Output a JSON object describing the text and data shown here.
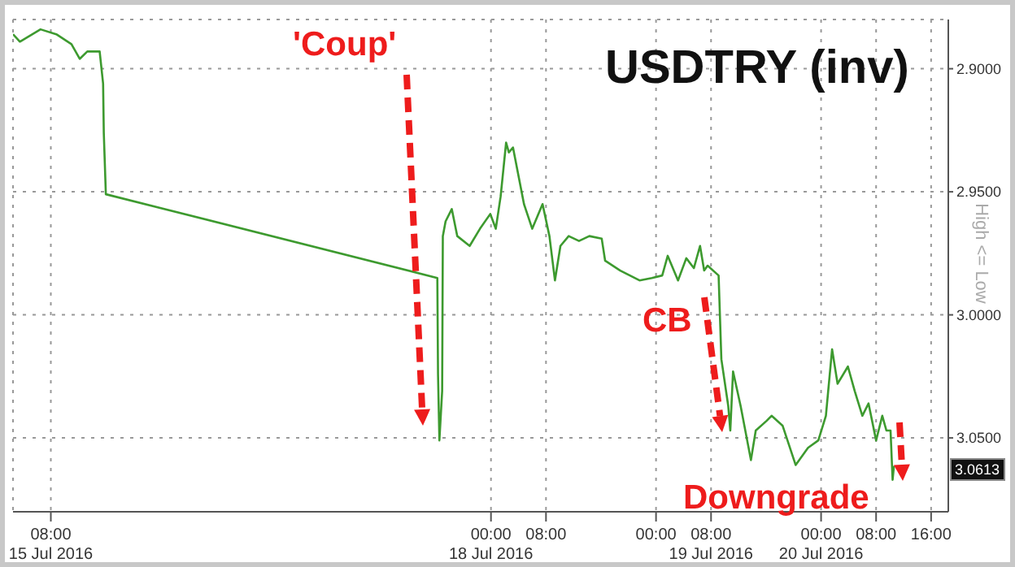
{
  "chart_data": {
    "type": "line",
    "title": "USDTRY (inv)",
    "ylabel": "High <= Low",
    "annotations": [
      "'Coup'",
      "CB",
      "Downgrade",
      "3.0613"
    ],
    "x": [
      "2016-07-15T02:30",
      "2016-07-15T03:30",
      "2016-07-15T06:30",
      "2016-07-15T08:48",
      "2016-07-15T11:00",
      "2016-07-15T12:12",
      "2016-07-15T13:18",
      "2016-07-15T15:06",
      "2016-07-15T15:36",
      "2016-07-15T15:42",
      "2016-07-15T16:00",
      "2016-07-17T16:12",
      "2016-07-17T16:18",
      "2016-07-17T16:30",
      "2016-07-17T16:54",
      "2016-07-17T17:00",
      "2016-07-17T17:24",
      "2016-07-17T18:18",
      "2016-07-17T19:06",
      "2016-07-17T20:54",
      "2016-07-17T22:24",
      "2016-07-17T23:54",
      "2016-07-18T00:42",
      "2016-07-18T01:24",
      "2016-07-18T02:12",
      "2016-07-18T02:36",
      "2016-07-18T03:12",
      "2016-07-18T04:48",
      "2016-07-18T06:00",
      "2016-07-18T07:30",
      "2016-07-18T08:30",
      "2016-07-18T09:18",
      "2016-07-18T10:06",
      "2016-07-18T11:18",
      "2016-07-18T12:48",
      "2016-07-18T14:18",
      "2016-07-18T16:06",
      "2016-07-18T16:36",
      "2016-07-18T18:48",
      "2016-07-18T21:36",
      "2016-07-18T23:24",
      "2016-07-19T00:54",
      "2016-07-19T01:42",
      "2016-07-19T03:12",
      "2016-07-19T04:24",
      "2016-07-19T05:30",
      "2016-07-19T06:24",
      "2016-07-19T07:00",
      "2016-07-19T07:30",
      "2016-07-19T09:06",
      "2016-07-19T09:30",
      "2016-07-19T10:30",
      "2016-07-19T10:48",
      "2016-07-19T11:12",
      "2016-07-19T12:18",
      "2016-07-19T13:48",
      "2016-07-19T14:30",
      "2016-07-19T16:06",
      "2016-07-19T16:48",
      "2016-07-19T18:24",
      "2016-07-19T20:18",
      "2016-07-19T22:06",
      "2016-07-19T23:36",
      "2016-07-20T00:42",
      "2016-07-20T01:36",
      "2016-07-20T02:24",
      "2016-07-20T03:54",
      "2016-07-20T04:54",
      "2016-07-20T06:00",
      "2016-07-20T06:54",
      "2016-07-20T08:00",
      "2016-07-20T08:54",
      "2016-07-20T09:30",
      "2016-07-20T10:06",
      "2016-07-20T10:24",
      "2016-07-20T10:36"
    ],
    "series": [
      {
        "color": "#3d9a2f",
        "values": [
          2.886,
          2.889,
          2.884,
          2.886,
          2.89,
          2.896,
          2.893,
          2.893,
          2.906,
          2.926,
          2.951,
          2.985,
          3.024,
          3.051,
          3.031,
          2.968,
          2.962,
          2.957,
          2.968,
          2.972,
          2.965,
          2.959,
          2.965,
          2.952,
          2.93,
          2.934,
          2.932,
          2.955,
          2.965,
          2.955,
          2.968,
          2.986,
          2.972,
          2.968,
          2.97,
          2.968,
          2.969,
          2.978,
          2.982,
          2.986,
          2.985,
          2.984,
          2.976,
          2.986,
          2.977,
          2.981,
          2.972,
          2.982,
          2.98,
          2.984,
          3.018,
          3.037,
          3.047,
          3.023,
          3.037,
          3.059,
          3.047,
          3.043,
          3.041,
          3.045,
          3.061,
          3.054,
          3.051,
          3.041,
          3.014,
          3.028,
          3.021,
          3.031,
          3.041,
          3.036,
          3.051,
          3.041,
          3.047,
          3.047,
          3.067,
          3.0613
        ]
      }
    ],
    "xlim": [
      "2016-07-15T02:30",
      "2016-07-20T18:30"
    ],
    "xticks": [
      {
        "value": "2016-07-15T08:00",
        "label": "08:00\n15 Jul 2016"
      },
      {
        "value": "2016-07-18T00:00",
        "label": "00:00\n18 Jul 2016"
      },
      {
        "value": "2016-07-18T08:00",
        "label": "08:00"
      },
      {
        "value": "2016-07-19T00:00",
        "label": "00:00"
      },
      {
        "value": "2016-07-19T08:00",
        "label": "08:00\n19 Jul 2016"
      },
      {
        "value": "2016-07-20T00:00",
        "label": "00:00\n20 Jul 2016"
      },
      {
        "value": "2016-07-20T08:00",
        "label": "08:00"
      },
      {
        "value": "2016-07-20T16:00",
        "label": "16:00"
      }
    ],
    "ylim": [
      3.08,
      2.88
    ],
    "yticks": [
      {
        "value": 2.9,
        "label": "2.9000"
      },
      {
        "value": 2.95,
        "label": "2.9500"
      },
      {
        "value": 3.0,
        "label": "3.0000"
      },
      {
        "value": 3.05,
        "label": "3.0500"
      }
    ],
    "grid": true,
    "legend": false,
    "marker": "none",
    "line_style": "solid"
  }
}
